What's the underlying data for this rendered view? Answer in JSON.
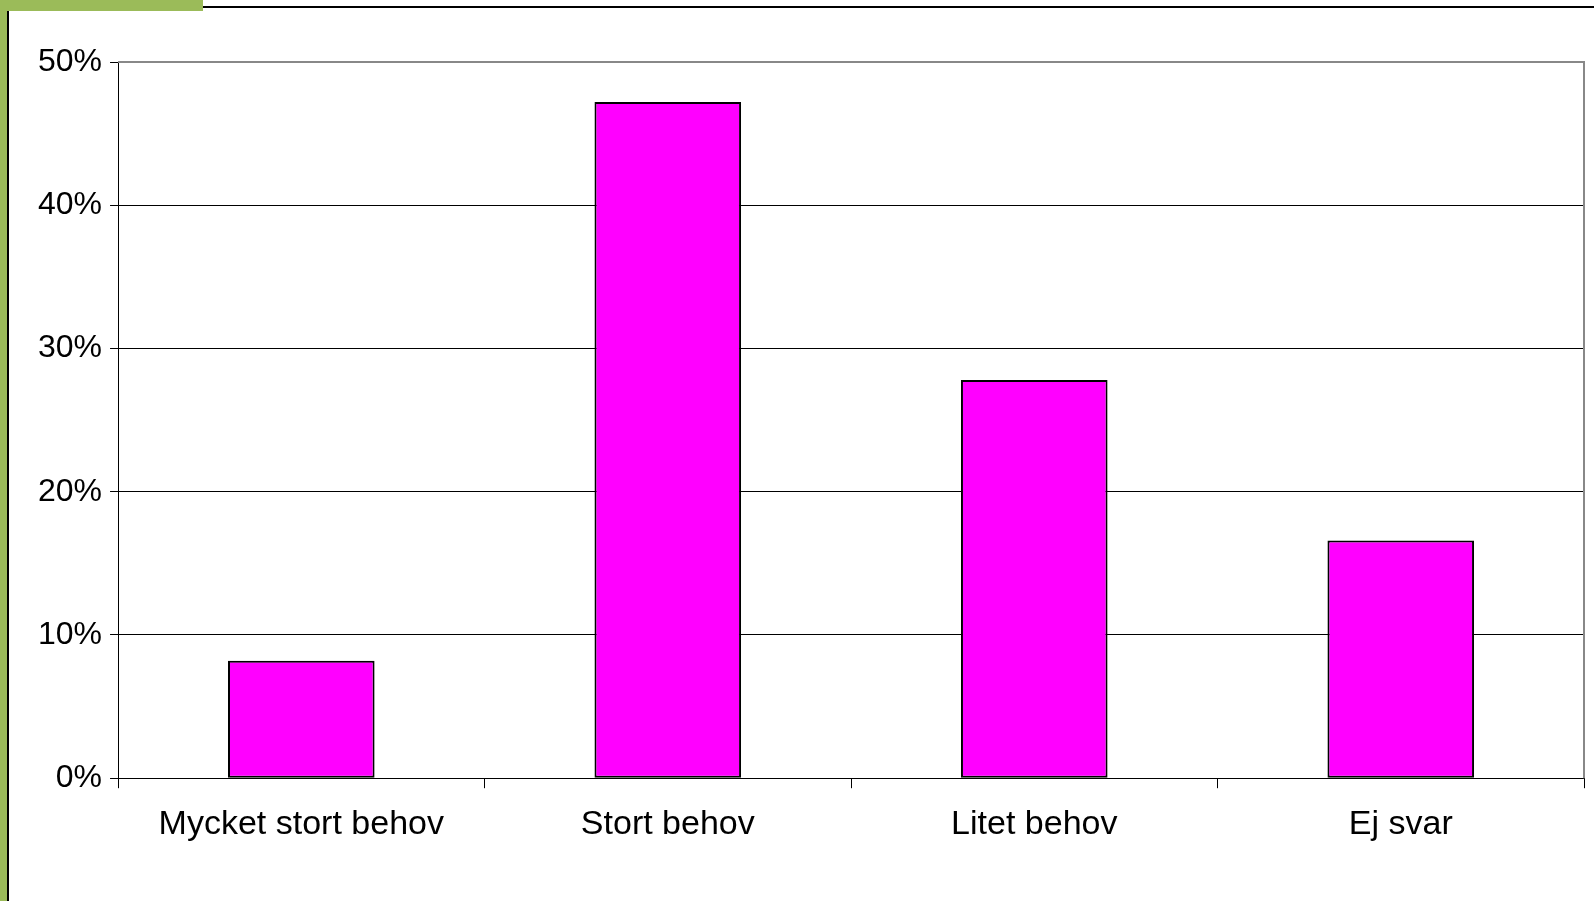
{
  "chart_data": {
    "type": "bar",
    "categories": [
      "Mycket stort behov",
      "Stort behov",
      "Litet behov",
      "Ej svar"
    ],
    "values": [
      8.2,
      47.2,
      27.8,
      16.6
    ],
    "color": "#ff00ff",
    "ylim": [
      0,
      50
    ],
    "yticks": [
      {
        "value": 0,
        "label": "0%"
      },
      {
        "value": 10,
        "label": "10%"
      },
      {
        "value": 20,
        "label": "20%"
      },
      {
        "value": 30,
        "label": "30%"
      },
      {
        "value": 40,
        "label": "40%"
      },
      {
        "value": 50,
        "label": "50%"
      }
    ],
    "grid": "y",
    "legend": false
  }
}
